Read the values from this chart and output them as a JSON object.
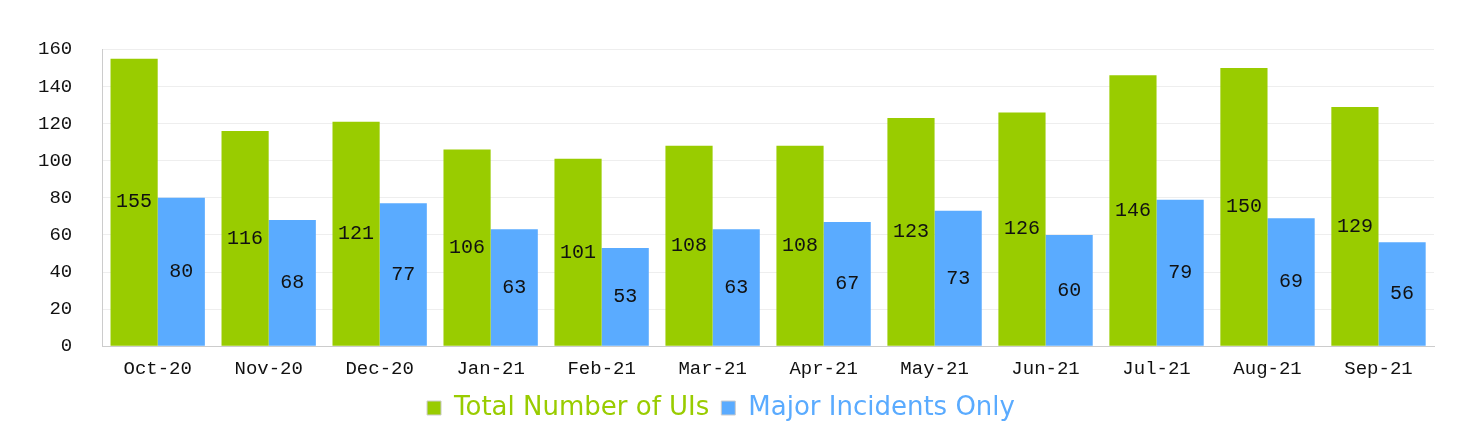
{
  "chart_data": {
    "type": "bar",
    "categories": [
      "Oct-20",
      "Nov-20",
      "Dec-20",
      "Jan-21",
      "Feb-21",
      "Mar-21",
      "Apr-21",
      "May-21",
      "Jun-21",
      "Jul-21",
      "Aug-21",
      "Sep-21"
    ],
    "series": [
      {
        "name": "Total Number of UIs",
        "color": "#99cc00",
        "values": [
          155,
          116,
          121,
          106,
          101,
          108,
          108,
          123,
          126,
          146,
          150,
          129
        ]
      },
      {
        "name": "Major Incidents Only",
        "color": "#5aabff",
        "values": [
          80,
          68,
          77,
          63,
          53,
          63,
          67,
          73,
          60,
          79,
          69,
          56
        ]
      }
    ],
    "ylim": [
      0,
      160
    ],
    "yticks": [
      0,
      20,
      40,
      60,
      80,
      100,
      120,
      140,
      160
    ],
    "grid": "y",
    "legend": "bottom",
    "data_labels": true
  }
}
